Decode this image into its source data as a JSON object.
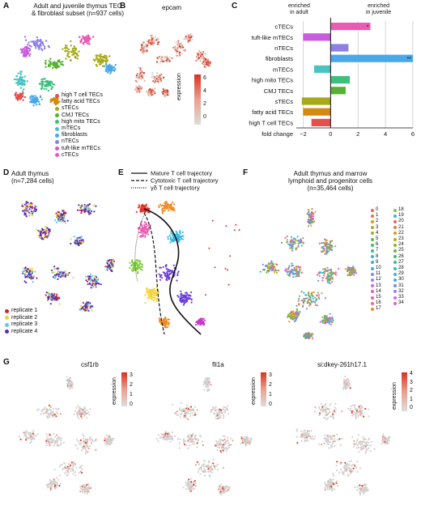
{
  "panelA": {
    "letter": "A",
    "title_line1": "Adult and juvenile thymus TEC",
    "title_line2": "& fibroblast subset (n=937 cells)",
    "legend": [
      {
        "label": "high T cell TECs",
        "color": "#e4514c"
      },
      {
        "label": "fatty acid TECs",
        "color": "#d48a12"
      },
      {
        "label": "sTECs",
        "color": "#a7a91a"
      },
      {
        "label": "CMJ TECs",
        "color": "#57b132"
      },
      {
        "label": "high mito TECs",
        "color": "#3dbf7d"
      },
      {
        "label": "mTECs",
        "color": "#49c2c0"
      },
      {
        "label": "fibroblasts",
        "color": "#4aa8e8"
      },
      {
        "label": "nTECs",
        "color": "#8d7fe6"
      },
      {
        "label": "tuft-like mTECs",
        "color": "#c95bdc"
      },
      {
        "label": "cTECs",
        "color": "#e85cb3"
      }
    ]
  },
  "panelB": {
    "letter": "B",
    "title": "epcam",
    "legend_title": "expression",
    "ticks": [
      "6",
      "4",
      "2",
      "0"
    ],
    "color_low": "#dddddd",
    "color_high": "#d8321f"
  },
  "panelC": {
    "letter": "C",
    "header_left": [
      "enriched",
      "in adult"
    ],
    "header_right": [
      "enriched",
      "in juvenile"
    ],
    "xlabel": "fold change",
    "xticks": [
      "−2",
      "0",
      "2",
      "4",
      "6"
    ],
    "chart_data": {
      "type": "bar",
      "orientation": "horizontal",
      "categories": [
        "cTECs",
        "tuft-like mTECs",
        "nTECs",
        "fibroblasts",
        "mTECs",
        "high mito TECs",
        "CMJ TECs",
        "sTECs",
        "fatty acid TECs",
        "high T cell TECs"
      ],
      "values": [
        2.9,
        -2.0,
        1.3,
        6.0,
        -1.2,
        1.4,
        1.1,
        -2.1,
        -2.0,
        -1.4
      ],
      "colors": [
        "#e85cb3",
        "#c95bdc",
        "#8d7fe6",
        "#4aa8e8",
        "#49c2c0",
        "#3dbf7d",
        "#57b132",
        "#a7a91a",
        "#d48a12",
        "#e4514c"
      ],
      "annotations": [
        "*",
        "",
        "",
        "**",
        "",
        "",
        "",
        "",
        "",
        ""
      ],
      "xlim": [
        -2.5,
        6
      ],
      "xtick_values": [
        -2,
        0,
        2,
        4,
        6
      ],
      "xlabel": "fold change",
      "grid": true
    }
  },
  "panelD": {
    "letter": "D",
    "title_line1": "Adult thymus",
    "title_line2": "(n=7,284 cells)",
    "legend": [
      {
        "label": "replicate 1",
        "color": "#d4232b"
      },
      {
        "label": "replicate 2",
        "color": "#e8d62f"
      },
      {
        "label": "replicate 3",
        "color": "#5cc9e8"
      },
      {
        "label": "replicate 4",
        "color": "#5a2bb8"
      }
    ]
  },
  "panelE": {
    "letter": "E",
    "legend": [
      {
        "label": "Mature T cell trajectory",
        "style": "solid"
      },
      {
        "label": "Cytotoxic T cell trajectory",
        "style": "dashed"
      },
      {
        "label": "γδ T cell trajectory",
        "style": "dotted"
      }
    ]
  },
  "panelF": {
    "letter": "F",
    "title_line1": "Adult thymus and marrow",
    "title_line2": "lymphoid and progenitor cells",
    "title_line3": "(n=35,464 cells)",
    "clusters": [
      "0",
      "1",
      "2",
      "3",
      "4",
      "5",
      "6",
      "7",
      "8",
      "9",
      "10",
      "11",
      "12",
      "13",
      "14",
      "15",
      "16",
      "17",
      "18",
      "19",
      "20",
      "21",
      "22",
      "23",
      "24",
      "25",
      "26",
      "27",
      "28",
      "29",
      "30",
      "31",
      "32",
      "33",
      "34"
    ]
  },
  "panelG": {
    "letter": "G",
    "genes": [
      {
        "name": "csf1rb",
        "ticks": [
          "3",
          "2",
          "1",
          "0"
        ]
      },
      {
        "name": "fli1a",
        "ticks": [
          "3",
          "2",
          "1",
          "0"
        ]
      },
      {
        "name": "si:dkey-261h17.1",
        "ticks": [
          "4",
          "3",
          "2",
          "1",
          "0"
        ]
      }
    ],
    "legend_title": "expression"
  }
}
